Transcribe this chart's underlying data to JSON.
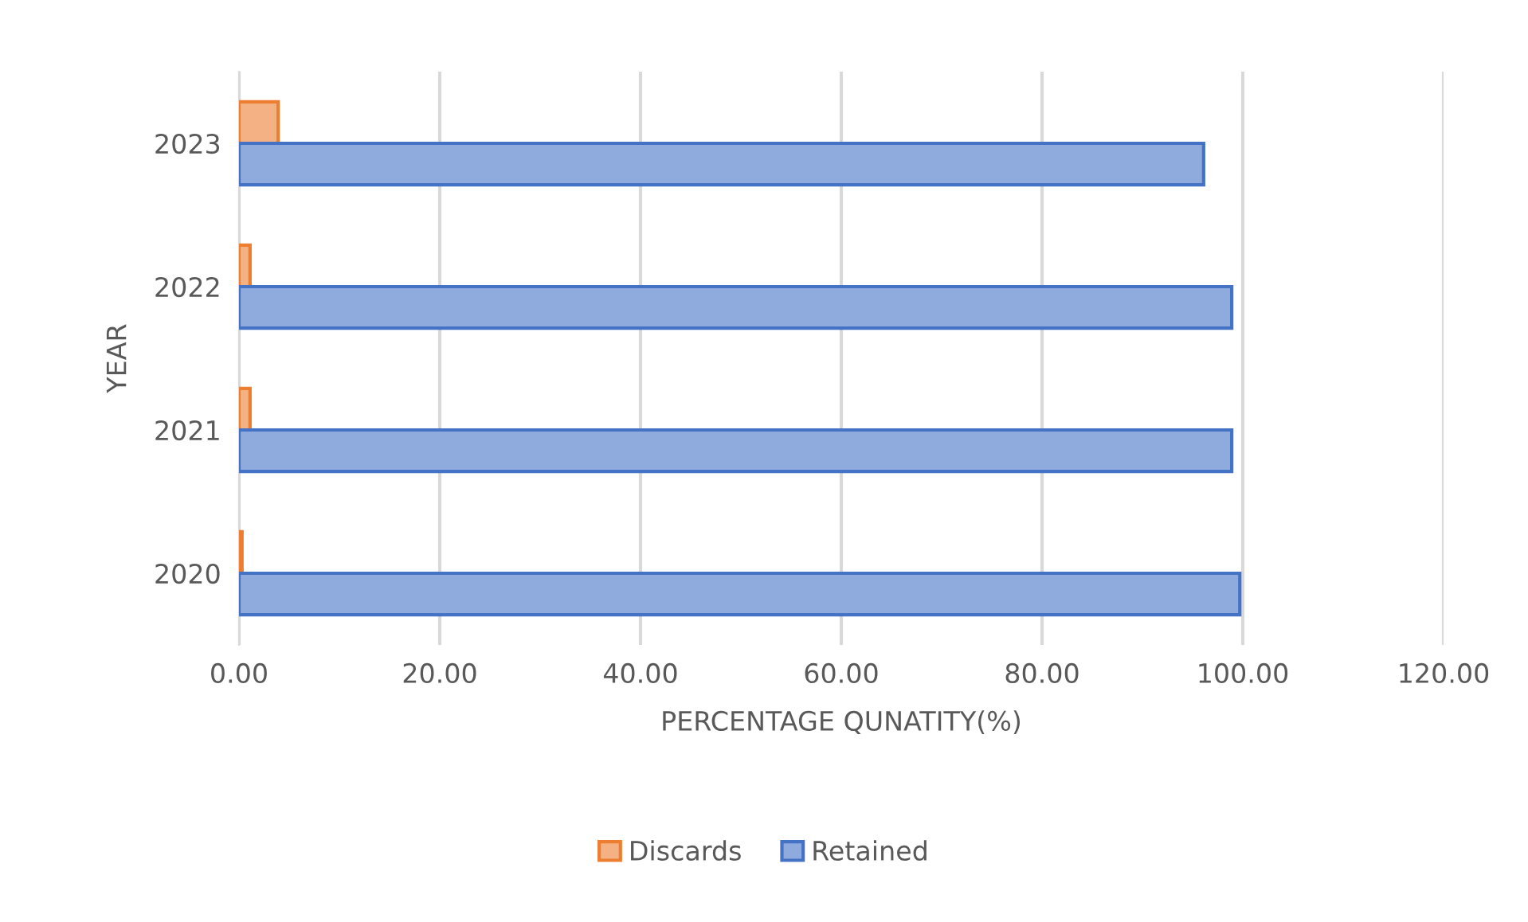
{
  "chart_data": {
    "type": "bar",
    "orientation": "horizontal",
    "xlabel": "PERCENTAGE QUNATITY(%)",
    "ylabel": "YEAR",
    "categories": [
      "2023",
      "2022",
      "2021",
      "2020"
    ],
    "series": [
      {
        "name": "Discards",
        "color": "#f4b183",
        "values": [
          3.9,
          1.1,
          1.1,
          0.3
        ]
      },
      {
        "name": "Retained",
        "color": "#8faadc",
        "values": [
          96.1,
          98.9,
          98.9,
          99.7
        ]
      }
    ],
    "xlim": [
      0,
      120
    ],
    "xticks": [
      {
        "value": 0,
        "label": "0.00"
      },
      {
        "value": 20,
        "label": "20.00"
      },
      {
        "value": 40,
        "label": "40.00"
      },
      {
        "value": 60,
        "label": "60.00"
      },
      {
        "value": 80,
        "label": "80.00"
      },
      {
        "value": 100,
        "label": "100.00"
      },
      {
        "value": 120,
        "label": "120.00"
      }
    ],
    "grid": "x",
    "legend": "bottom"
  }
}
